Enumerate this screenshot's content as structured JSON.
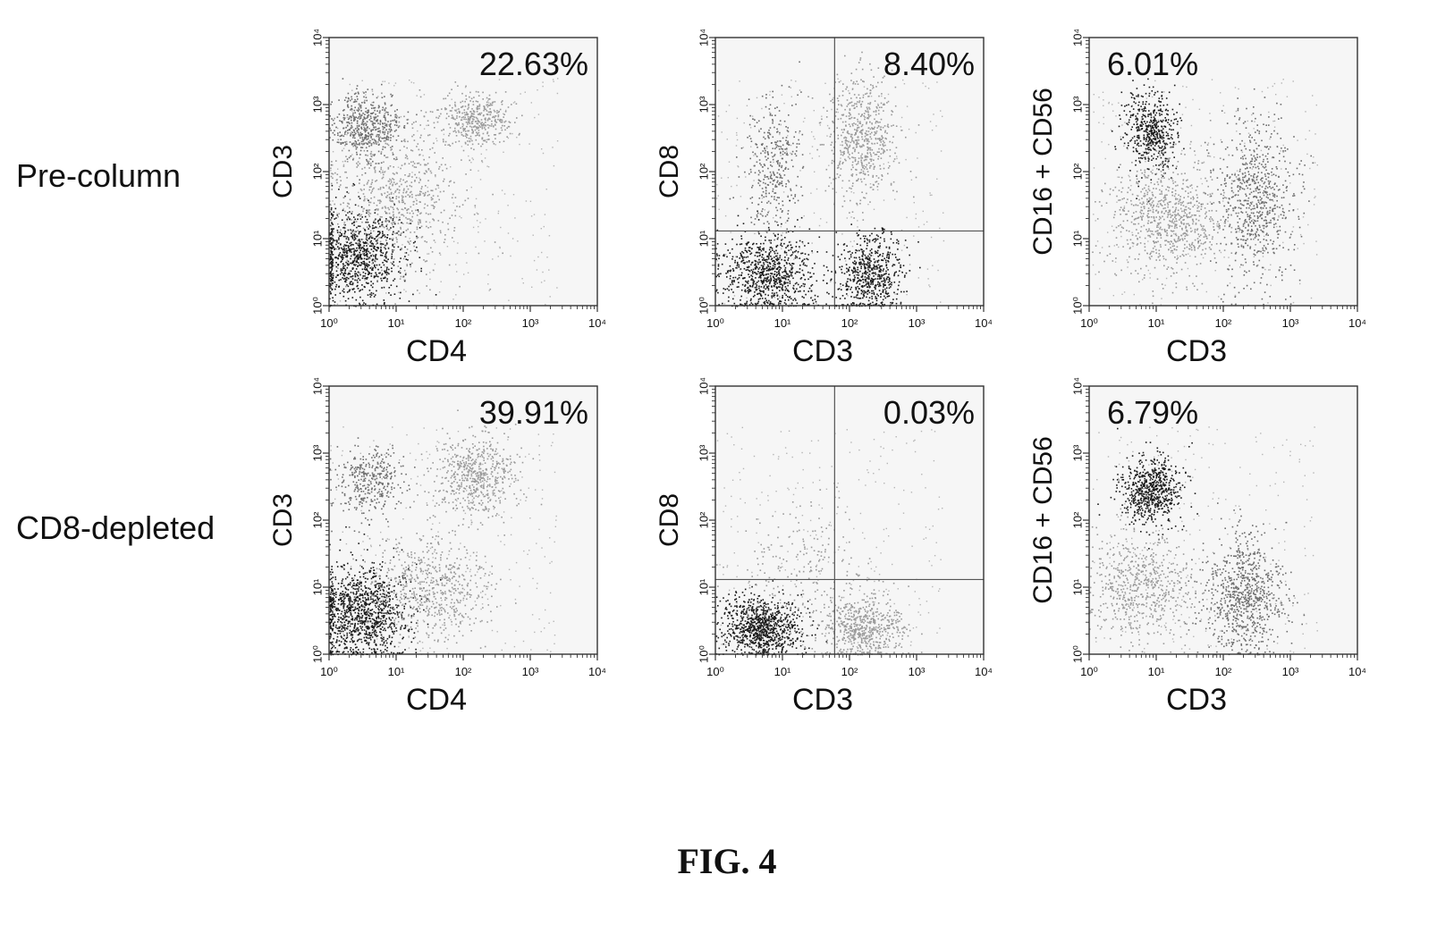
{
  "figure": {
    "caption": "FIG. 4",
    "row_labels": [
      "Pre-column",
      "CD8-depleted"
    ]
  },
  "colors": {
    "frame": "#333333",
    "gate": "#555555",
    "text": "#111111",
    "dense": "#1a1a1a",
    "mid": "#6e6e6e",
    "light": "#9a9a9a"
  },
  "chart_data": [
    {
      "type": "scatter",
      "row": "Pre-column",
      "xlabel": "CD4",
      "ylabel": "CD3",
      "xscale": "log",
      "yscale": "log",
      "xlim": [
        1,
        10000
      ],
      "ylim": [
        1,
        10000
      ],
      "x_ticks": [
        "10⁰",
        "10¹",
        "10²",
        "10³",
        "10⁴"
      ],
      "y_ticks": [
        "10⁰",
        "10¹",
        "10²",
        "10³",
        "10⁴"
      ],
      "annotation": "22.63%",
      "quadrant_gate": null,
      "populations": [
        {
          "x": 2.5,
          "y": 6,
          "spread_x": 0.35,
          "spread_y": 0.35,
          "shade": "dense",
          "n": 900
        },
        {
          "x": 3.5,
          "y": 500,
          "spread_x": 0.25,
          "spread_y": 0.25,
          "shade": "mid",
          "n": 500
        },
        {
          "x": 150,
          "y": 600,
          "spread_x": 0.25,
          "spread_y": 0.2,
          "shade": "light",
          "n": 400
        },
        {
          "x": 10,
          "y": 40,
          "spread_x": 0.5,
          "spread_y": 0.6,
          "shade": "light",
          "n": 700
        }
      ]
    },
    {
      "type": "scatter",
      "row": "Pre-column",
      "xlabel": "CD3",
      "ylabel": "CD8",
      "xscale": "log",
      "yscale": "log",
      "xlim": [
        1,
        10000
      ],
      "ylim": [
        1,
        10000
      ],
      "x_ticks": [
        "10⁰",
        "10¹",
        "10²",
        "10³",
        "10⁴"
      ],
      "y_ticks": [
        "10⁰",
        "10¹",
        "10²",
        "10³",
        "10⁴"
      ],
      "annotation": "8.40%",
      "quadrant_gate": {
        "x": 60,
        "y": 13
      },
      "populations": [
        {
          "x": 6,
          "y": 3,
          "spread_x": 0.35,
          "spread_y": 0.3,
          "shade": "dense",
          "n": 800
        },
        {
          "x": 7,
          "y": 120,
          "spread_x": 0.2,
          "spread_y": 0.5,
          "shade": "mid",
          "n": 350
        },
        {
          "x": 200,
          "y": 3,
          "spread_x": 0.25,
          "spread_y": 0.3,
          "shade": "dense",
          "n": 600
        },
        {
          "x": 150,
          "y": 300,
          "spread_x": 0.25,
          "spread_y": 0.45,
          "shade": "light",
          "n": 600
        }
      ]
    },
    {
      "type": "scatter",
      "row": "Pre-column",
      "xlabel": "CD3",
      "ylabel": "CD16 + CD56",
      "xscale": "log",
      "yscale": "log",
      "xlim": [
        1,
        10000
      ],
      "ylim": [
        1,
        10000
      ],
      "x_ticks": [
        "10⁰",
        "10¹",
        "10²",
        "10³",
        "10⁴"
      ],
      "y_ticks": [
        "10⁰",
        "10¹",
        "10²",
        "10³",
        "10⁴"
      ],
      "annotation": "6.01%",
      "quadrant_gate": null,
      "populations": [
        {
          "x": 8,
          "y": 400,
          "spread_x": 0.2,
          "spread_y": 0.3,
          "shade": "dense",
          "n": 500
        },
        {
          "x": 15,
          "y": 20,
          "spread_x": 0.45,
          "spread_y": 0.45,
          "shade": "light",
          "n": 800
        },
        {
          "x": 300,
          "y": 40,
          "spread_x": 0.3,
          "spread_y": 0.6,
          "shade": "mid",
          "n": 700
        }
      ]
    },
    {
      "type": "scatter",
      "row": "CD8-depleted",
      "xlabel": "CD4",
      "ylabel": "CD3",
      "xscale": "log",
      "yscale": "log",
      "xlim": [
        1,
        10000
      ],
      "ylim": [
        1,
        10000
      ],
      "x_ticks": [
        "10⁰",
        "10¹",
        "10²",
        "10³",
        "10⁴"
      ],
      "y_ticks": [
        "10⁰",
        "10¹",
        "10²",
        "10³",
        "10⁴"
      ],
      "annotation": "39.91%",
      "quadrant_gate": null,
      "populations": [
        {
          "x": 3,
          "y": 4,
          "spread_x": 0.35,
          "spread_y": 0.35,
          "shade": "dense",
          "n": 1100
        },
        {
          "x": 4,
          "y": 400,
          "spread_x": 0.25,
          "spread_y": 0.25,
          "shade": "mid",
          "n": 350
        },
        {
          "x": 150,
          "y": 500,
          "spread_x": 0.3,
          "spread_y": 0.3,
          "shade": "light",
          "n": 550
        },
        {
          "x": 30,
          "y": 10,
          "spread_x": 0.45,
          "spread_y": 0.4,
          "shade": "light",
          "n": 600
        }
      ]
    },
    {
      "type": "scatter",
      "row": "CD8-depleted",
      "xlabel": "CD3",
      "ylabel": "CD8",
      "xscale": "log",
      "yscale": "log",
      "xlim": [
        1,
        10000
      ],
      "ylim": [
        1,
        10000
      ],
      "x_ticks": [
        "10⁰",
        "10¹",
        "10²",
        "10³",
        "10⁴"
      ],
      "y_ticks": [
        "10⁰",
        "10¹",
        "10²",
        "10³",
        "10⁴"
      ],
      "annotation": "0.03%",
      "quadrant_gate": {
        "x": 60,
        "y": 13
      },
      "populations": [
        {
          "x": 5,
          "y": 2.5,
          "spread_x": 0.3,
          "spread_y": 0.22,
          "shade": "dense",
          "n": 900
        },
        {
          "x": 150,
          "y": 2.5,
          "spread_x": 0.3,
          "spread_y": 0.25,
          "shade": "light",
          "n": 600
        },
        {
          "x": 20,
          "y": 20,
          "spread_x": 0.5,
          "spread_y": 0.45,
          "shade": "light",
          "n": 200
        }
      ]
    },
    {
      "type": "scatter",
      "row": "CD8-depleted",
      "xlabel": "CD3",
      "ylabel": "CD16 + CD56",
      "xscale": "log",
      "yscale": "log",
      "xlim": [
        1,
        10000
      ],
      "ylim": [
        1,
        10000
      ],
      "x_ticks": [
        "10⁰",
        "10¹",
        "10²",
        "10³",
        "10⁴"
      ],
      "y_ticks": [
        "10⁰",
        "10¹",
        "10²",
        "10³",
        "10⁴"
      ],
      "annotation": "6.79%",
      "quadrant_gate": null,
      "populations": [
        {
          "x": 8,
          "y": 300,
          "spread_x": 0.22,
          "spread_y": 0.25,
          "shade": "dense",
          "n": 650
        },
        {
          "x": 6,
          "y": 10,
          "spread_x": 0.4,
          "spread_y": 0.4,
          "shade": "light",
          "n": 600
        },
        {
          "x": 200,
          "y": 8,
          "spread_x": 0.3,
          "spread_y": 0.45,
          "shade": "mid",
          "n": 800
        }
      ]
    }
  ]
}
